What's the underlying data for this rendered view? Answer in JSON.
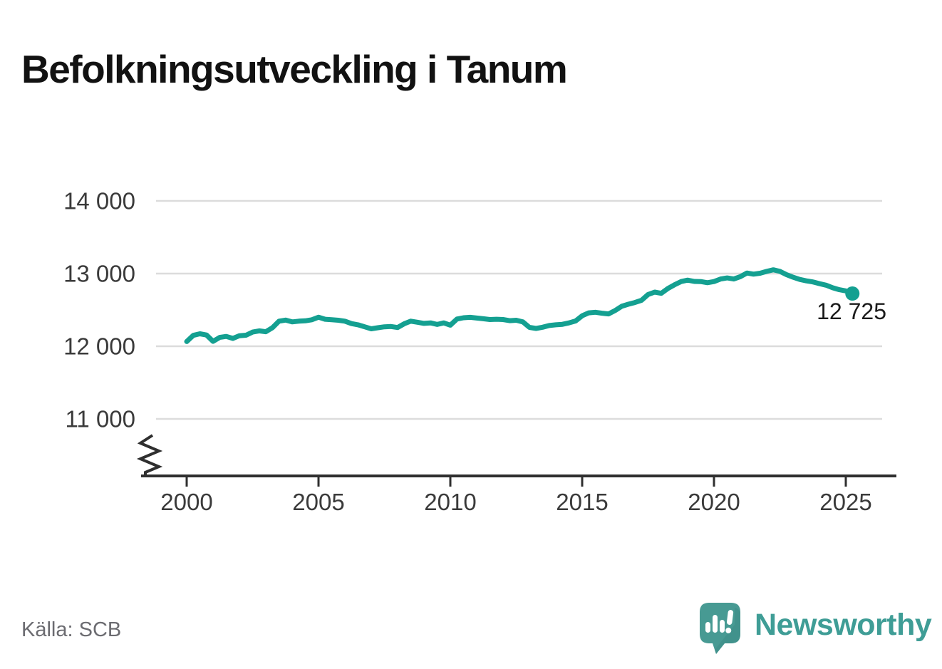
{
  "title": "Befolkningsutveckling i Tanum",
  "source": "Källa: SCB",
  "branding": {
    "wordmark": "Newsworthy",
    "mark_color": "#479a93",
    "wordmark_color": "#3f9d96"
  },
  "colors": {
    "line": "#14a091",
    "grid": "#dcdcdc",
    "axis": "#2f2f2f",
    "tick_text": "#3a3a3a",
    "title_text": "#121212",
    "end_label_text": "#1b1b1b",
    "source_text": "#6b6b70",
    "background": "#ffffff"
  },
  "chart_data": {
    "type": "line",
    "title": "Befolkningsutveckling i Tanum",
    "xlabel": "",
    "ylabel": "",
    "grid": "horizontal-only",
    "legend": "none",
    "y_axis_break": true,
    "x_start": 2000,
    "x_step_years": 0.25,
    "x_end": 2025.25,
    "x_ticks": [
      2000,
      2005,
      2010,
      2015,
      2020,
      2025
    ],
    "y_ticks": [
      {
        "value": 14000,
        "label": "14 000"
      },
      {
        "value": 13000,
        "label": "13 000"
      },
      {
        "value": 12000,
        "label": "12 000"
      },
      {
        "value": 11000,
        "label": "11 000"
      }
    ],
    "series_name": "Befolkning i Tanum",
    "values": [
      12065,
      12150,
      12172,
      12155,
      12068,
      12122,
      12135,
      12108,
      12145,
      12152,
      12195,
      12212,
      12200,
      12255,
      12345,
      12360,
      12335,
      12345,
      12350,
      12365,
      12400,
      12372,
      12365,
      12358,
      12345,
      12312,
      12295,
      12268,
      12240,
      12255,
      12268,
      12272,
      12258,
      12310,
      12345,
      12330,
      12315,
      12322,
      12300,
      12322,
      12290,
      12375,
      12392,
      12398,
      12388,
      12378,
      12368,
      12372,
      12368,
      12352,
      12358,
      12335,
      12260,
      12245,
      12262,
      12285,
      12295,
      12302,
      12322,
      12348,
      12420,
      12460,
      12468,
      12455,
      12445,
      12492,
      12550,
      12578,
      12602,
      12632,
      12712,
      12745,
      12728,
      12795,
      12845,
      12890,
      12910,
      12892,
      12890,
      12875,
      12890,
      12925,
      12940,
      12925,
      12958,
      13008,
      12992,
      13005,
      13030,
      13052,
      13030,
      12985,
      12950,
      12920,
      12900,
      12885,
      12862,
      12840,
      12805,
      12778,
      12762,
      12725
    ],
    "end_value": 12725,
    "end_value_label": "12 725"
  }
}
